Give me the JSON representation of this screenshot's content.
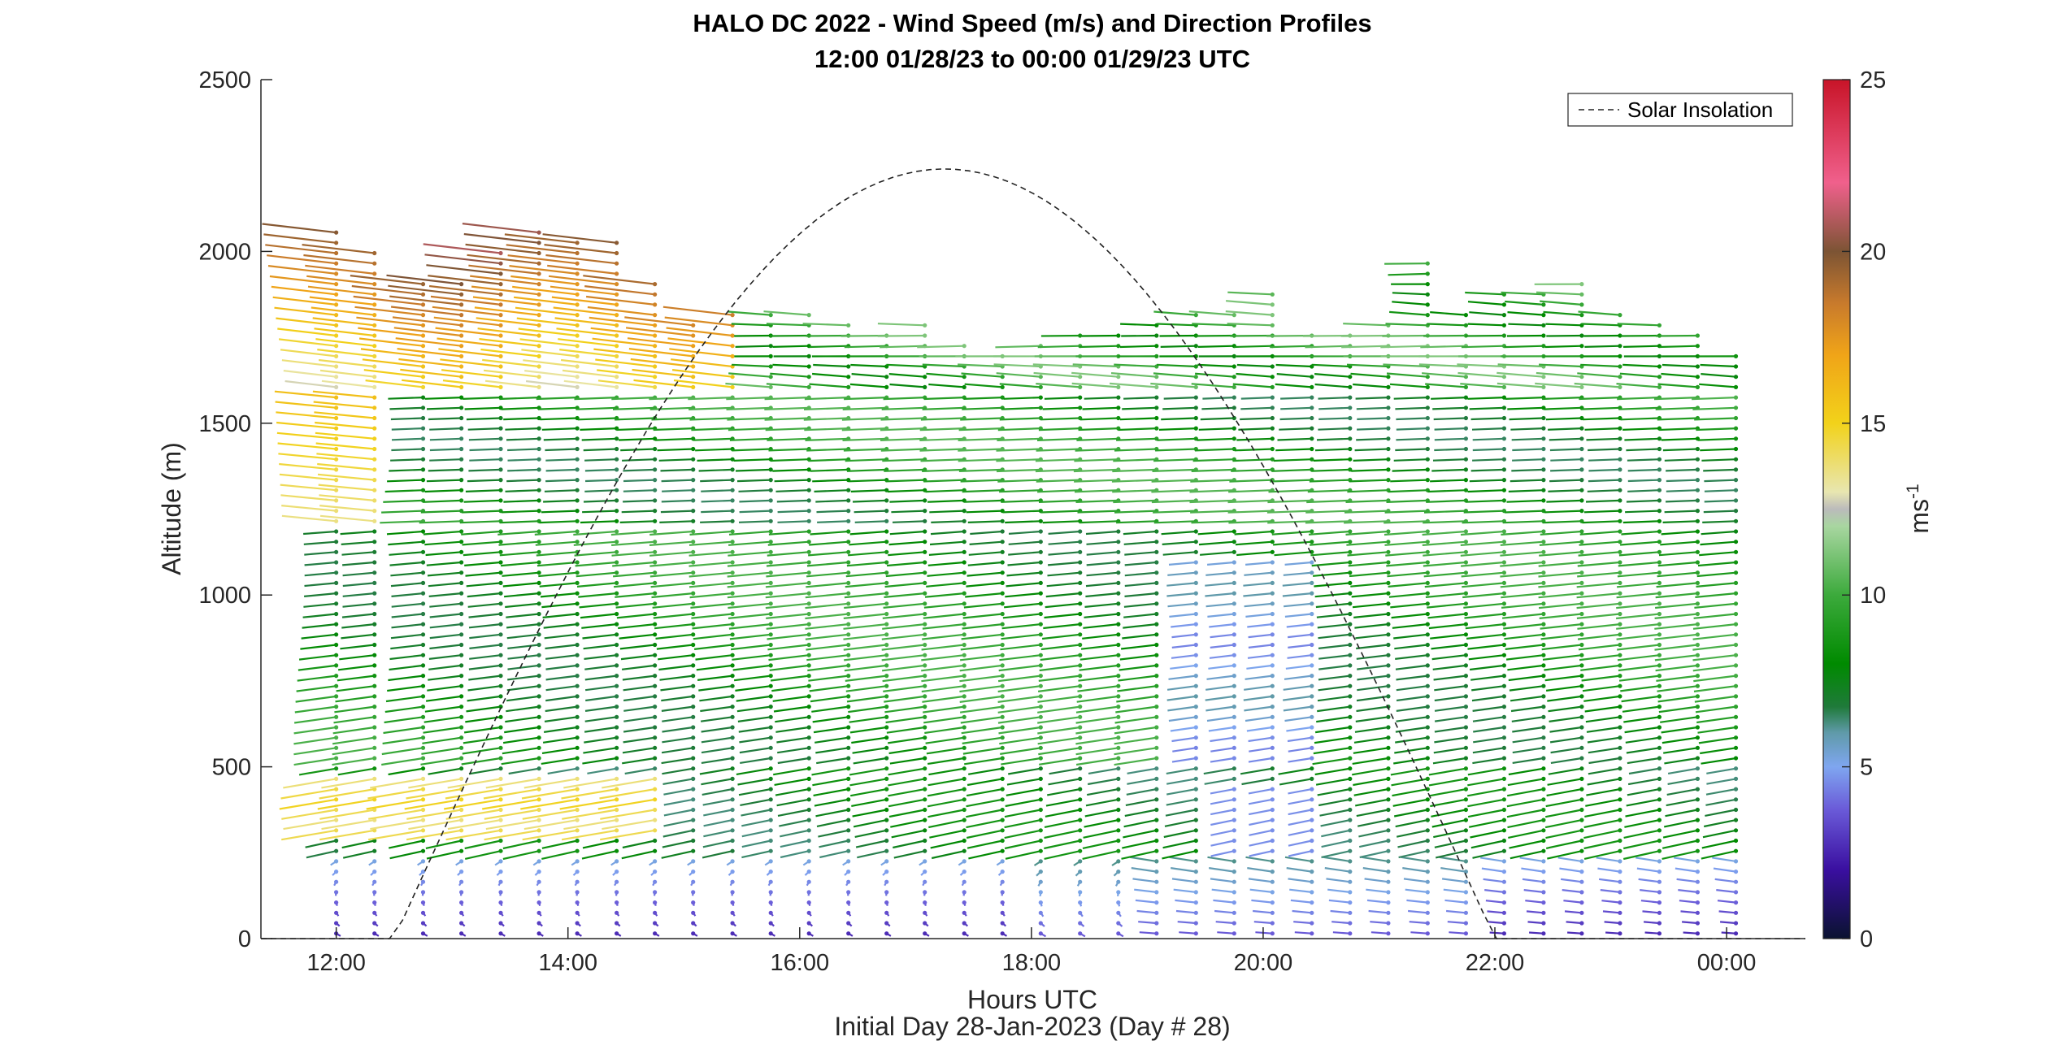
{
  "chart_data": {
    "type": "wind barb profile",
    "title": "HALO DC 2022 - Wind Speed (m/s) and Direction Profiles",
    "subtitle": "12:00 01/28/23 to 00:00 01/29/23  UTC",
    "xlabel": "Hours UTC",
    "xlabel2": "Initial Day 28-Jan-2023 (Day # 28)",
    "ylabel": "Altitude (m)",
    "x_ticks": [
      "12:00",
      "14:00",
      "16:00",
      "18:00",
      "20:00",
      "22:00",
      "00:00"
    ],
    "x_tick_hours": [
      12,
      14,
      16,
      18,
      20,
      22,
      24
    ],
    "xlim_hours": [
      11.35,
      24.68
    ],
    "y_ticks": [
      0,
      500,
      1000,
      1500,
      2000,
      2500
    ],
    "ylim": [
      0,
      2500
    ],
    "colorbar": {
      "label": "ms",
      "label_exponent": "-1",
      "ticks": [
        0,
        5,
        10,
        15,
        20,
        25
      ],
      "range": [
        0,
        25
      ]
    },
    "legend": {
      "position": "top-right",
      "entries": [
        {
          "name": "Solar Insolation",
          "style": "dashed"
        }
      ]
    },
    "solar_insolation": {
      "rise_hour": 12.5,
      "set_hour": 22.0,
      "peak_hour": 17.25,
      "peak_altitude_equiv": 2240
    },
    "profile_times_hours": [
      12.0,
      12.33,
      12.75,
      13.08,
      13.42,
      13.75,
      14.08,
      14.42,
      14.75,
      15.08,
      15.42,
      15.75,
      16.08,
      16.42,
      16.75,
      17.08,
      17.42,
      17.75,
      18.08,
      18.42,
      18.75,
      19.08,
      19.42,
      19.75,
      20.08,
      20.42,
      20.75,
      21.08,
      21.42,
      21.75,
      22.08,
      22.42,
      22.75,
      23.08,
      23.42,
      23.75,
      24.08
    ],
    "profile_max_altitude_m": [
      2060,
      2020,
      1930,
      1930,
      2020,
      2060,
      2050,
      2040,
      1920,
      1790,
      1840,
      1820,
      1830,
      1790,
      1770,
      1790,
      1740,
      1720,
      1740,
      1770,
      1780,
      1800,
      1840,
      1840,
      1880,
      1780,
      1770,
      1790,
      1980,
      1820,
      1880,
      1890,
      1920,
      1830,
      1810,
      1780,
      1700
    ],
    "range_gate_spacing_m": 30,
    "wind_speed_layers": [
      {
        "altitude_min_m": 0,
        "altitude_max_m": 250,
        "speed_ms": 3.5,
        "direction": "southerly, backing through the evening"
      },
      {
        "altitude_min_m": 250,
        "altitude_max_m": 500,
        "speed_ms": 8,
        "direction": "westerly"
      },
      {
        "altitude_min_m": 300,
        "altitude_max_m": 470,
        "speed_ms": 14.5,
        "direction": "west-northwesterly",
        "time_range_hours": [
          12.0,
          15.0
        ]
      },
      {
        "altitude_min_m": 500,
        "altitude_max_m": 1200,
        "speed_ms": 8.5,
        "direction": "west-southwesterly"
      },
      {
        "altitude_min_m": 1200,
        "altitude_max_m": 1600,
        "speed_ms": 8.5,
        "direction": "westerly"
      },
      {
        "altitude_min_m": 1600,
        "altitude_max_m": 2060,
        "speed_ms": 16,
        "direction": "west-northwesterly",
        "time_range_hours": [
          12.0,
          15.5
        ]
      },
      {
        "altitude_min_m": 1600,
        "altitude_max_m": 1900,
        "speed_ms": 10,
        "direction": "westerly",
        "time_range_hours": [
          15.5,
          24.1
        ]
      }
    ]
  }
}
